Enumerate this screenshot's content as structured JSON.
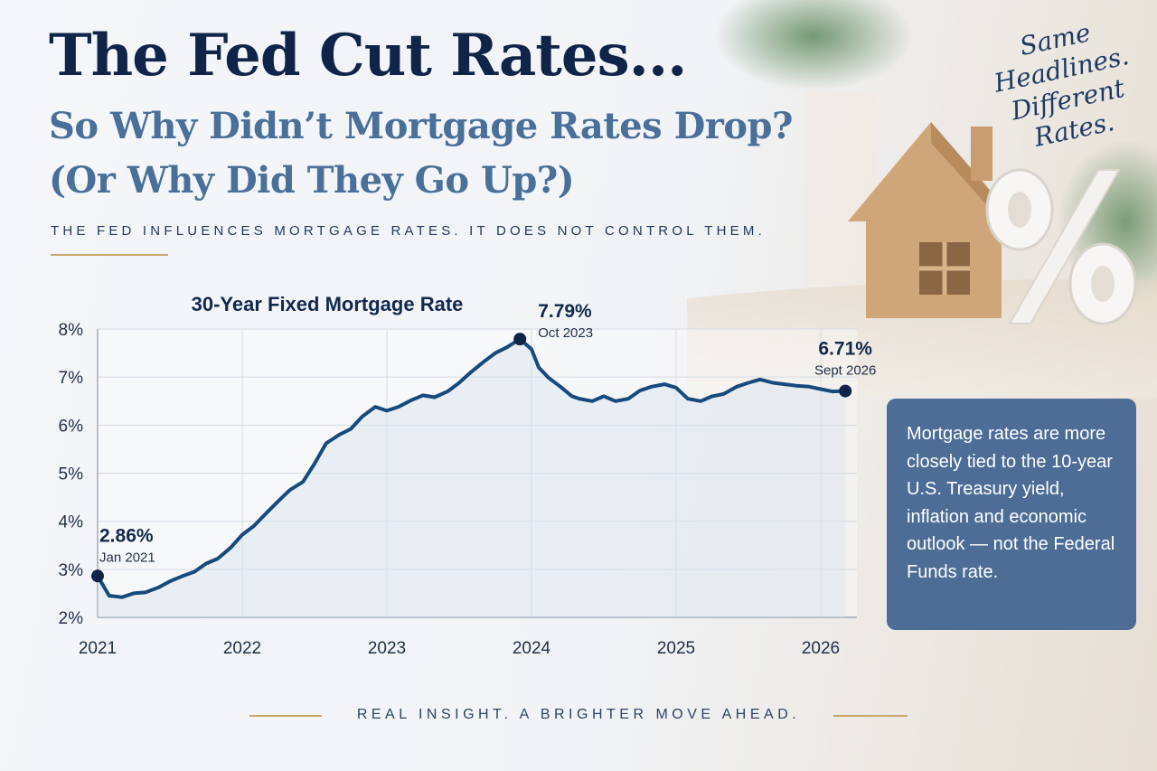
{
  "headline": {
    "title": "The Fed Cut Rates...",
    "subtitle_line1": "So Why Didn’t Mortgage Rates Drop?",
    "subtitle_line2": "(Or Why Did They Go Up?)",
    "tagline": "THE FED INFLUENCES MORTGAGE RATES. IT DOES NOT CONTROL THEM."
  },
  "script_note": [
    "Same",
    "Headlines.",
    "Different",
    "Rates."
  ],
  "callout": {
    "text": "Mortgage rates are more closely tied to the 10-year U.S. Treasury yield, inflation and economic outlook — not the Federal Funds rate."
  },
  "footer": {
    "text": "REAL INSIGHT. A BRIGHTER MOVE AHEAD."
  },
  "colors": {
    "line": "#174a7c",
    "callout": "#4d6d96",
    "gold": "#c9a66a",
    "navy": "#0f2448"
  },
  "chart_data": {
    "type": "line",
    "title": "30-Year Fixed Mortgage Rate",
    "xlabel": "",
    "ylabel": "",
    "x_ticks": [
      "2021",
      "2022",
      "2023",
      "2024",
      "2025",
      "2026"
    ],
    "y_ticks": [
      "2%",
      "3%",
      "4%",
      "5%",
      "6%",
      "7%",
      "8%"
    ],
    "xlim": [
      2021,
      2026.25
    ],
    "ylim": [
      2,
      8
    ],
    "grid": true,
    "series": [
      {
        "x": [
          2021.0,
          2021.08,
          2021.17,
          2021.25,
          2021.33,
          2021.42,
          2021.5,
          2021.58,
          2021.67,
          2021.75,
          2021.83,
          2021.92,
          2022.0,
          2022.08,
          2022.17,
          2022.25,
          2022.33,
          2022.42,
          2022.5,
          2022.58,
          2022.67,
          2022.75,
          2022.83,
          2022.92,
          2023.0,
          2023.08,
          2023.17,
          2023.25,
          2023.33,
          2023.42,
          2023.5,
          2023.58,
          2023.67,
          2023.75,
          2023.83,
          2023.92,
          2024.0,
          2024.05,
          2024.12,
          2024.2,
          2024.28,
          2024.33,
          2024.42,
          2024.5,
          2024.58,
          2024.67,
          2024.75,
          2024.83,
          2024.92,
          2025.0,
          2025.08,
          2025.17,
          2025.25,
          2025.33,
          2025.42,
          2025.5,
          2025.58,
          2025.67,
          2025.75,
          2025.83,
          2025.92,
          2026.0,
          2026.08,
          2026.17
        ],
        "y": [
          2.86,
          2.45,
          2.42,
          2.5,
          2.52,
          2.62,
          2.75,
          2.85,
          2.95,
          3.12,
          3.22,
          3.45,
          3.72,
          3.9,
          4.18,
          4.42,
          4.65,
          4.82,
          5.2,
          5.62,
          5.8,
          5.92,
          6.18,
          6.38,
          6.3,
          6.38,
          6.52,
          6.62,
          6.58,
          6.7,
          6.88,
          7.1,
          7.32,
          7.5,
          7.62,
          7.79,
          7.58,
          7.2,
          6.98,
          6.8,
          6.6,
          6.55,
          6.5,
          6.6,
          6.5,
          6.55,
          6.72,
          6.8,
          6.85,
          6.78,
          6.55,
          6.5,
          6.6,
          6.65,
          6.8,
          6.88,
          6.95,
          6.88,
          6.85,
          6.82,
          6.8,
          6.75,
          6.7,
          6.71
        ]
      }
    ],
    "annotations": [
      {
        "value": "2.86%",
        "date": "Jan 2021",
        "x": 2021.0,
        "y": 2.86
      },
      {
        "value": "7.79%",
        "date": "Oct 2023",
        "x": 2023.92,
        "y": 7.79
      },
      {
        "value": "6.71%",
        "date": "Sept 2026",
        "x": 2026.17,
        "y": 6.71
      }
    ]
  }
}
